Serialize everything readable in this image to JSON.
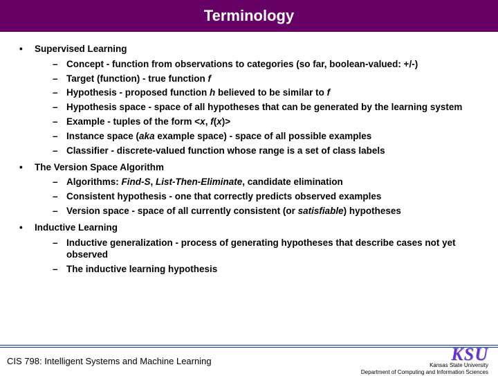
{
  "title": "Terminology",
  "sections": [
    {
      "heading": "Supervised Learning",
      "items": [
        "Concept - function from observations to categories (so far, boolean-valued: +/-)",
        "Target (function) - true function <i>f</i>",
        "Hypothesis - proposed function <i>h</i> believed to be similar to <i>f</i>",
        "Hypothesis space - space of all hypotheses that can be generated by the learning system",
        "Example - tuples of the form &lt;<i>x</i>, <i>f</i>(<i>x</i>)&gt;",
        "Instance space (<i>aka</i> example space) - space of all possible examples",
        "Classifier - discrete-valued function whose range is a set of class labels"
      ]
    },
    {
      "heading": "The Version Space Algorithm",
      "items": [
        "Algorithms: <i>Find-S</i>, <i>List-Then-Eliminate</i>, candidate elimination",
        "Consistent hypothesis - one that correctly predicts observed examples",
        "Version space - space of all currently consistent (or <i>satisfiable</i>) hypotheses"
      ]
    },
    {
      "heading": "Inductive Learning",
      "items": [
        "Inductive generalization - process of generating hypotheses that describe cases not yet observed",
        "The inductive learning hypothesis"
      ]
    }
  ],
  "footer": {
    "left": "CIS 798: Intelligent Systems and Machine Learning",
    "logo": "KSU",
    "line1": "Kansas State University",
    "line2": "Department of Computing and Information Sciences"
  },
  "colors": {
    "title_bg": "#660066",
    "title_fg": "#ffffff",
    "text": "#000000",
    "rule": "#003399",
    "logo": "#6633cc"
  }
}
